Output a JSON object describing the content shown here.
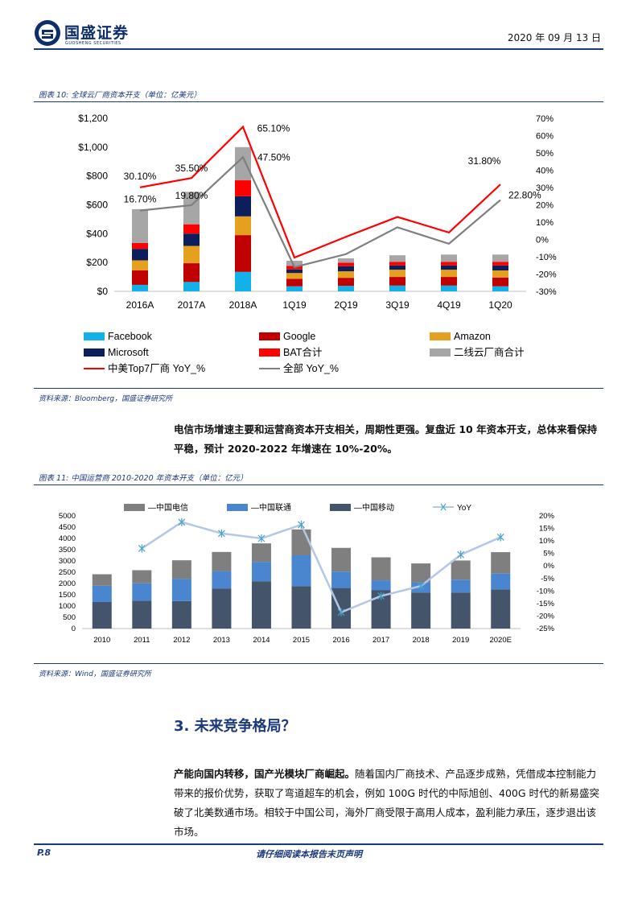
{
  "header": {
    "brand": "国盛证券",
    "brand_sub": "GUOSHENG SECURITIES",
    "date": "2020 年 09 月 13 日"
  },
  "figure10": {
    "caption": "图表 10:  全球云厂商资本开支（单位：亿美元）",
    "source": "资料来源：Bloomberg，国盛证券研究所"
  },
  "paragraph1": "电信市场增速主要和运营商资本开支相关，周期性更强。复盘近 10 年资本开支，总体来看保持平稳，预计 2020-2022 年增速在 10%-20%。",
  "figure11": {
    "caption": "图表 11:  中国运营商 2010-2020 年资本开支（单位：亿元）",
    "source": "资料来源：Wind，国盛证券研究所"
  },
  "section": "3.  未来竞争格局？",
  "paragraph2_bold": "产能向国内转移，国产光模块厂商崛起。",
  "paragraph2": "随着国内厂商技术、产品逐步成熟，凭借成本控制能力带来的报价优势，获取了弯道超车的机会，例如 100G 时代的中际旭创、400G 时代的新易盛突破了北美数通市场。相较于中国公司，海外厂商受限于高用人成本，盈利能力承压，逐步退出该市场。",
  "footer": {
    "page": "P.8",
    "disclaimer": "请仔细阅读本报告末页声明"
  },
  "chart_data": [
    {
      "type": "bar",
      "stacked": true,
      "categories": [
        "2016A",
        "2017A",
        "2018A",
        "1Q19",
        "2Q19",
        "3Q19",
        "4Q19",
        "1Q20"
      ],
      "series": [
        {
          "name": "Facebook",
          "color": "#12b2e8",
          "values": [
            45,
            65,
            135,
            35,
            38,
            40,
            40,
            35
          ]
        },
        {
          "name": "Google",
          "color": "#c00000",
          "values": [
            100,
            130,
            255,
            52,
            56,
            60,
            60,
            60
          ]
        },
        {
          "name": "Amazon",
          "color": "#e6a020",
          "values": [
            70,
            120,
            130,
            40,
            45,
            50,
            50,
            50
          ]
        },
        {
          "name": "Microsoft",
          "color": "#0c1f5c",
          "values": [
            80,
            85,
            140,
            25,
            35,
            30,
            30,
            35
          ]
        },
        {
          "name": "BAT合计",
          "color": "#ff0000",
          "values": [
            40,
            65,
            110,
            25,
            25,
            25,
            25,
            25
          ]
        },
        {
          "name": "二线云厂商合计",
          "color": "#a6a6a6",
          "values": [
            235,
            225,
            230,
            35,
            30,
            45,
            50,
            50
          ]
        }
      ],
      "lines": [
        {
          "name": "中美Top7厂商 YoY_%",
          "color": "#ff0000",
          "values": [
            30.1,
            35.5,
            65.1,
            -10.5,
            1.5,
            13.0,
            4.0,
            31.8
          ]
        },
        {
          "name": "全部 YoY_%",
          "color": "#7f7f7f",
          "values": [
            16.7,
            19.8,
            47.5,
            -16.0,
            -8.5,
            7.0,
            -2.5,
            22.8
          ]
        }
      ],
      "data_labels": [
        {
          "text": "30.10%",
          "line": 0,
          "index": 0
        },
        {
          "text": "35.50%",
          "line": 0,
          "index": 1
        },
        {
          "text": "65.10%",
          "line": 0,
          "index": 2
        },
        {
          "text": "31.80%",
          "line": 0,
          "index": 7
        },
        {
          "text": "16.70%",
          "line": 1,
          "index": 0
        },
        {
          "text": "19.80%",
          "line": 1,
          "index": 1
        },
        {
          "text": "47.50%",
          "line": 1,
          "index": 2
        },
        {
          "text": "22.80%",
          "line": 1,
          "index": 7
        }
      ],
      "ylim": [
        0,
        1200
      ],
      "y_ticks": [
        "$0",
        "$200",
        "$400",
        "$600",
        "$800",
        "$1,000",
        "$1,200"
      ],
      "y2lim": [
        -30,
        70
      ],
      "y2_ticks": [
        "-30%",
        "-20%",
        "-10%",
        "0%",
        "10%",
        "20%",
        "30%",
        "40%",
        "50%",
        "60%",
        "70%"
      ],
      "legend": [
        "Facebook",
        "Google",
        "Amazon",
        "Microsoft",
        "BAT合计",
        "二线云厂商合计",
        "中美Top7厂商 YoY_%",
        "全部 YoY_%"
      ],
      "legend_position": "bottom"
    },
    {
      "type": "bar",
      "stacked": true,
      "categories": [
        "2010",
        "2011",
        "2012",
        "2013",
        "2014",
        "2015",
        "2016",
        "2017",
        "2018",
        "2019",
        "2020E"
      ],
      "series": [
        {
          "name": "中国移动",
          "color": "#44546a",
          "values": [
            1180,
            1240,
            1220,
            1780,
            2100,
            1880,
            1800,
            1710,
            1600,
            1600,
            1740
          ]
        },
        {
          "name": "中国联通",
          "color": "#4a86d0",
          "values": [
            720,
            770,
            990,
            770,
            860,
            1370,
            730,
            430,
            450,
            570,
            700
          ]
        },
        {
          "name": "中国电信",
          "color": "#7f7f7f",
          "values": [
            510,
            580,
            820,
            850,
            820,
            1150,
            1050,
            1020,
            840,
            850,
            950
          ]
        }
      ],
      "lines": [
        {
          "name": "YoY",
          "color": "#b4c7e7",
          "values": [
            null,
            7,
            17.5,
            13,
            11,
            16.5,
            -18.5,
            -12,
            -8,
            4.5,
            11.5
          ]
        }
      ],
      "ylim": [
        0,
        5000
      ],
      "y_ticks": [
        "0",
        "500",
        "1000",
        "1500",
        "2000",
        "2500",
        "3000",
        "3500",
        "4000",
        "4500",
        "5000"
      ],
      "y2lim": [
        -25,
        20
      ],
      "y2_ticks": [
        "-25%",
        "-20%",
        "-15%",
        "-10%",
        "-5%",
        "0%",
        "5%",
        "10%",
        "15%",
        "20%"
      ],
      "legend": [
        "中国电信",
        "中国联通",
        "中国移动",
        "YoY"
      ],
      "legend_position": "top"
    }
  ]
}
